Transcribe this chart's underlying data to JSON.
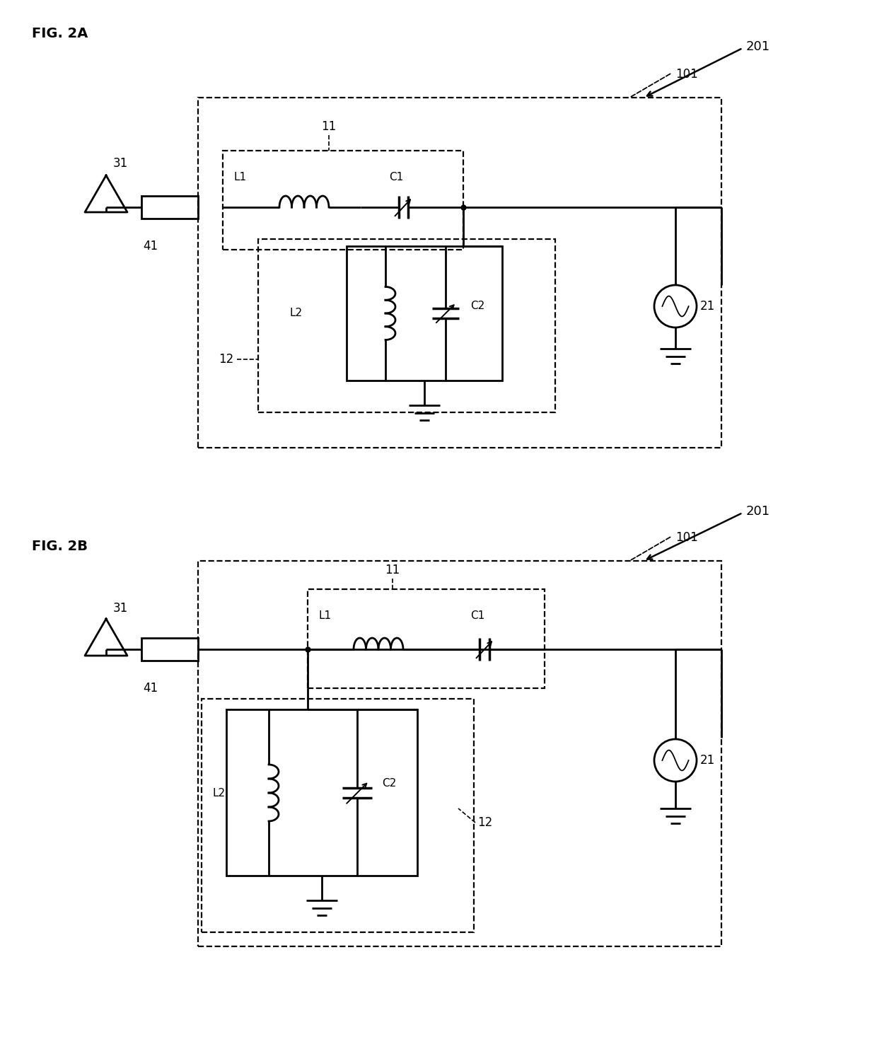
{
  "bg_color": "#ffffff",
  "line_color": "#000000",
  "fig_width": 12.4,
  "fig_height": 14.93,
  "fig2a_label": "FIG. 2A",
  "fig2b_label": "FIG. 2B",
  "label_201": "201",
  "label_101": "101",
  "label_31": "31",
  "label_41": "41",
  "label_21": "21",
  "label_11": "11",
  "label_12": "12",
  "label_L1": "L1",
  "label_C1": "C1",
  "label_L2": "L2",
  "label_C2": "C2"
}
